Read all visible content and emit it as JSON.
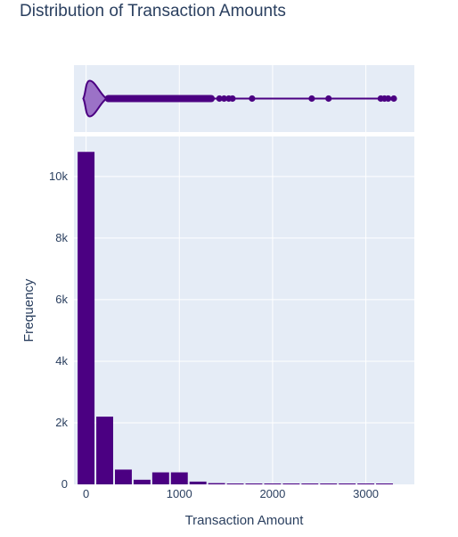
{
  "chart_data": {
    "type": "histogram",
    "title": "Distribution of Transaction Amounts",
    "xlabel": "Transaction Amount",
    "ylabel": "Frequency",
    "xlim": [
      -130,
      3520
    ],
    "ylim": [
      0,
      11300
    ],
    "x_ticks": [
      {
        "value": 0,
        "label": "0"
      },
      {
        "value": 1000,
        "label": "1000"
      },
      {
        "value": 2000,
        "label": "2000"
      },
      {
        "value": 3000,
        "label": "3000"
      }
    ],
    "y_ticks": [
      {
        "value": 0,
        "label": "0"
      },
      {
        "value": 2000,
        "label": "2k"
      },
      {
        "value": 4000,
        "label": "4k"
      },
      {
        "value": 6000,
        "label": "6k"
      },
      {
        "value": 8000,
        "label": "8k"
      },
      {
        "value": 10000,
        "label": "10k"
      }
    ],
    "bins": [
      {
        "x0": -100,
        "x1": 100,
        "count": 10800
      },
      {
        "x0": 100,
        "x1": 300,
        "count": 2200
      },
      {
        "x0": 300,
        "x1": 500,
        "count": 480
      },
      {
        "x0": 500,
        "x1": 700,
        "count": 150
      },
      {
        "x0": 700,
        "x1": 900,
        "count": 390
      },
      {
        "x0": 900,
        "x1": 1100,
        "count": 390
      },
      {
        "x0": 1100,
        "x1": 1300,
        "count": 90
      },
      {
        "x0": 1300,
        "x1": 1500,
        "count": 40
      },
      {
        "x0": 1500,
        "x1": 1700,
        "count": 10
      },
      {
        "x0": 1700,
        "x1": 1900,
        "count": 8
      },
      {
        "x0": 1900,
        "x1": 2100,
        "count": 3
      },
      {
        "x0": 2100,
        "x1": 2300,
        "count": 2
      },
      {
        "x0": 2300,
        "x1": 2500,
        "count": 5
      },
      {
        "x0": 2500,
        "x1": 2700,
        "count": 5
      },
      {
        "x0": 2700,
        "x1": 2900,
        "count": 2
      },
      {
        "x0": 2900,
        "x1": 3100,
        "count": 2
      },
      {
        "x0": 3100,
        "x1": 3300,
        "count": 8
      }
    ],
    "marginal": {
      "type": "violin",
      "median": 40,
      "q1": 10,
      "q3": 150,
      "outlier_dense_range": [
        200,
        1380
      ],
      "outliers": [
        1430,
        1480,
        1530,
        1570,
        1780,
        2420,
        2600,
        3160,
        3200,
        3240,
        3300
      ]
    },
    "colors": {
      "bar": "#4b0082",
      "violin_fill": "#9b72c7",
      "plot_bg": "#e5ecf6",
      "grid": "#ffffff",
      "text": "#2a3f5f"
    },
    "grid": true,
    "legend": "none"
  }
}
